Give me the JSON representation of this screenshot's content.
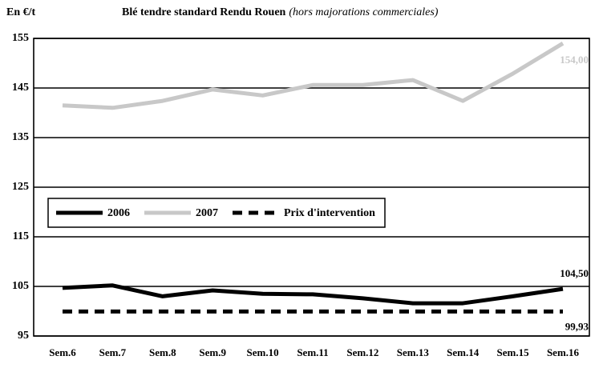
{
  "chart_data": {
    "type": "line",
    "title": "Blé tendre standard Rendu Rouen",
    "subtitle": "(hors majorations commerciales)",
    "y_label": "En €/t",
    "categories": [
      "Sem.6",
      "Sem.7",
      "Sem.8",
      "Sem.9",
      "Sem.10",
      "Sem.11",
      "Sem.12",
      "Sem.13",
      "Sem.14",
      "Sem.15",
      "Sem.16"
    ],
    "series": [
      {
        "name": "2006",
        "color": "#000000",
        "dashed": false,
        "values": [
          104.7,
          105.2,
          103,
          104.2,
          103.5,
          103.4,
          102.6,
          101.6,
          101.6,
          103,
          104.5
        ],
        "value_labels": [
          null,
          null,
          null,
          null,
          null,
          null,
          null,
          null,
          null,
          null,
          "104,50"
        ]
      },
      {
        "name": "2007",
        "color": "#c8c8c8",
        "dashed": false,
        "values": [
          141.5,
          141,
          142.4,
          144.7,
          143.5,
          145.6,
          145.6,
          146.6,
          142.4,
          147.9,
          154
        ],
        "value_labels": [
          null,
          null,
          null,
          null,
          null,
          null,
          null,
          null,
          null,
          null,
          "154,00"
        ]
      },
      {
        "name": "Prix d'intervention",
        "color": "#000000",
        "dashed": true,
        "values": [
          99.93,
          99.93,
          99.93,
          99.93,
          99.93,
          99.93,
          99.93,
          99.93,
          99.93,
          99.93,
          99.93
        ],
        "value_labels": [
          null,
          null,
          null,
          null,
          null,
          null,
          null,
          null,
          null,
          null,
          "99,93"
        ]
      }
    ],
    "ylim": [
      95,
      155
    ],
    "yticks": [
      95,
      105,
      115,
      125,
      135,
      145,
      155
    ],
    "grid": true,
    "legend": "center left"
  }
}
